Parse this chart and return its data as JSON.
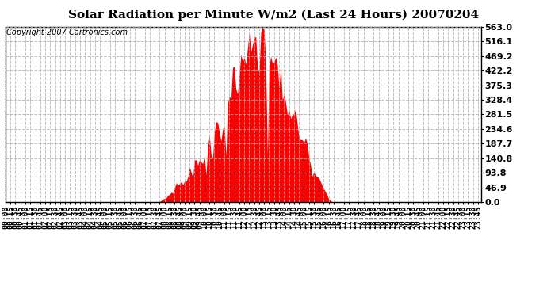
{
  "title": "Solar Radiation per Minute W/m2 (Last 24 Hours) 20070204",
  "copyright_text": "Copyright 2007 Cartronics.com",
  "bar_color": "#ff0000",
  "background_color": "#ffffff",
  "plot_bg_color": "#ffffff",
  "grid_color": "#b0b0b0",
  "ytick_labels": [
    "0.0",
    "46.9",
    "93.8",
    "140.8",
    "187.7",
    "234.6",
    "281.5",
    "328.4",
    "375.3",
    "422.2",
    "469.2",
    "516.1",
    "563.0"
  ],
  "ytick_values": [
    0.0,
    46.9,
    93.8,
    140.8,
    187.7,
    234.6,
    281.5,
    328.4,
    375.3,
    422.2,
    469.2,
    516.1,
    563.0
  ],
  "ymax": 563.0,
  "ymin": 0.0,
  "title_fontsize": 11,
  "copyright_fontsize": 7,
  "tick_fontsize": 7,
  "ytick_fontsize": 8
}
